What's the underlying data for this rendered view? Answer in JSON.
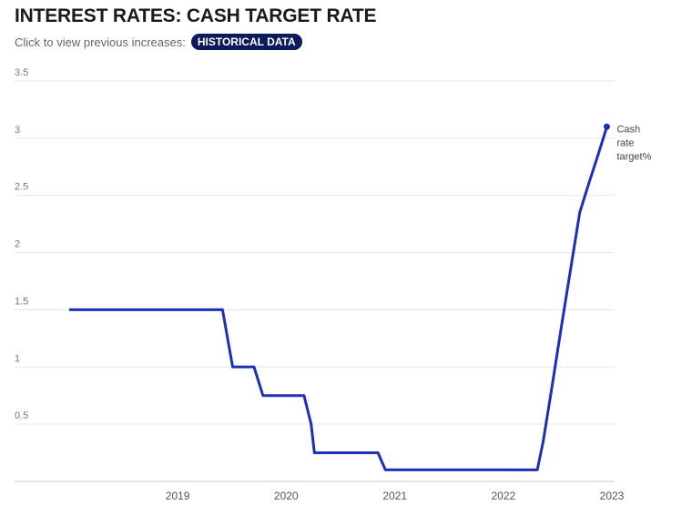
{
  "header": {
    "title": "INTEREST RATES: CASH TARGET RATE",
    "subtitle": "Click to view previous increases:",
    "button_label": "HISTORICAL DATA"
  },
  "colors": {
    "line": "#1c2fb8",
    "button_bg": "#0b1a5c",
    "grid": "#e6e6e6"
  },
  "chart_data": {
    "type": "line",
    "title": "INTEREST RATES: CASH TARGET RATE",
    "xlabel": "",
    "ylabel": "",
    "ylim": [
      0,
      3.5
    ],
    "y_ticks": [
      "3.5",
      "3",
      "2.5",
      "2",
      "1.5",
      "1",
      "0.5"
    ],
    "y_tick_values": [
      3.5,
      3,
      2.5,
      2,
      1.5,
      1,
      0.5
    ],
    "x_ticks": [
      "2019",
      "2020",
      "2021",
      "2022",
      "2023"
    ],
    "x_tick_values": [
      "2019-01-01",
      "2020-01-01",
      "2021-01-01",
      "2022-01-01",
      "2023-01-01"
    ],
    "xlim": [
      "2018-01-01",
      "2023-01-01"
    ],
    "grid": true,
    "series": [
      {
        "name": "Cash rate target%",
        "name_lines": [
          "Cash",
          "rate",
          "target%"
        ],
        "points": [
          {
            "x": "2018-01-01",
            "y": 1.5
          },
          {
            "x": "2019-06-01",
            "y": 1.5
          },
          {
            "x": "2019-07-05",
            "y": 1.0
          },
          {
            "x": "2019-09-15",
            "y": 1.0
          },
          {
            "x": "2019-10-15",
            "y": 0.75
          },
          {
            "x": "2020-03-01",
            "y": 0.75
          },
          {
            "x": "2020-03-25",
            "y": 0.5
          },
          {
            "x": "2020-04-05",
            "y": 0.25
          },
          {
            "x": "2020-11-05",
            "y": 0.25
          },
          {
            "x": "2020-11-30",
            "y": 0.1
          },
          {
            "x": "2022-04-25",
            "y": 0.1
          },
          {
            "x": "2022-05-15",
            "y": 0.35
          },
          {
            "x": "2022-06-15",
            "y": 0.85
          },
          {
            "x": "2022-07-15",
            "y": 1.35
          },
          {
            "x": "2022-08-15",
            "y": 1.85
          },
          {
            "x": "2022-09-15",
            "y": 2.35
          },
          {
            "x": "2022-10-15",
            "y": 2.6
          },
          {
            "x": "2022-11-15",
            "y": 2.85
          },
          {
            "x": "2022-12-15",
            "y": 3.1
          }
        ]
      }
    ]
  }
}
